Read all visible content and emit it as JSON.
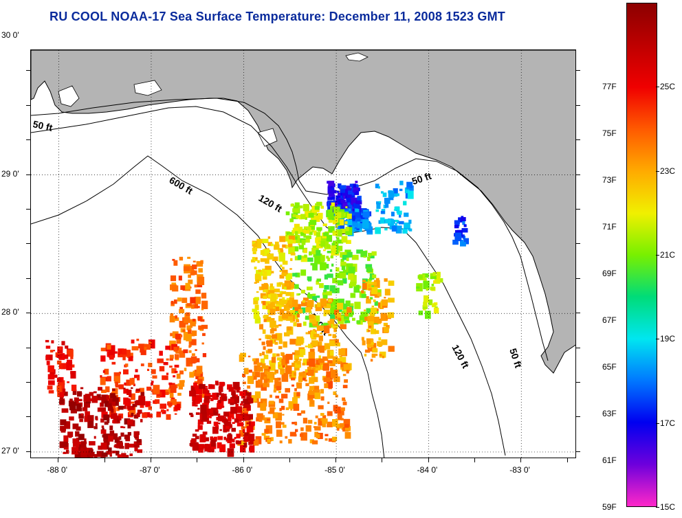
{
  "title": "RU COOL  NOAA-17  Sea Surface Temperature:  December 11, 2008 1523 GMT",
  "map": {
    "lon_range": [
      -88.3,
      -82.4
    ],
    "lat_range": [
      26.95,
      29.9
    ],
    "lon_ticks": [
      {
        "value": -88,
        "label": "-88 0'"
      },
      {
        "value": -87,
        "label": "-87 0'"
      },
      {
        "value": -86,
        "label": "-86 0'"
      },
      {
        "value": -85,
        "label": "-85 0'"
      },
      {
        "value": -84,
        "label": "-84 0'"
      },
      {
        "value": -83,
        "label": "-83 0'"
      }
    ],
    "lat_ticks": [
      {
        "value": 30,
        "label": "30 0'"
      },
      {
        "value": 29,
        "label": "29 0'"
      },
      {
        "value": 28,
        "label": "28 0'"
      },
      {
        "value": 27,
        "label": "27 0'"
      }
    ],
    "grid": "dotted",
    "land_color": "#b4b4b4",
    "depth_contours": [
      {
        "label": "50 ft"
      },
      {
        "label": "120 ft"
      },
      {
        "label": "600 ft"
      },
      {
        "label": "600 ft"
      },
      {
        "label": "120 ft"
      },
      {
        "label": "120 ft"
      },
      {
        "label": "50 ft"
      },
      {
        "label": "50 ft"
      }
    ]
  },
  "colorbar": {
    "range_c": [
      15,
      27
    ],
    "f_labels": [
      "77F",
      "75F",
      "73F",
      "71F",
      "69F",
      "67F",
      "65F",
      "63F",
      "61F",
      "59F"
    ],
    "f_values": [
      77,
      75,
      73,
      71,
      69,
      67,
      65,
      63,
      61,
      59
    ],
    "c_labels": [
      "25C",
      "23C",
      "21C",
      "19C",
      "17C",
      "15C"
    ],
    "c_values": [
      25,
      23,
      21,
      19,
      17,
      15
    ]
  }
}
